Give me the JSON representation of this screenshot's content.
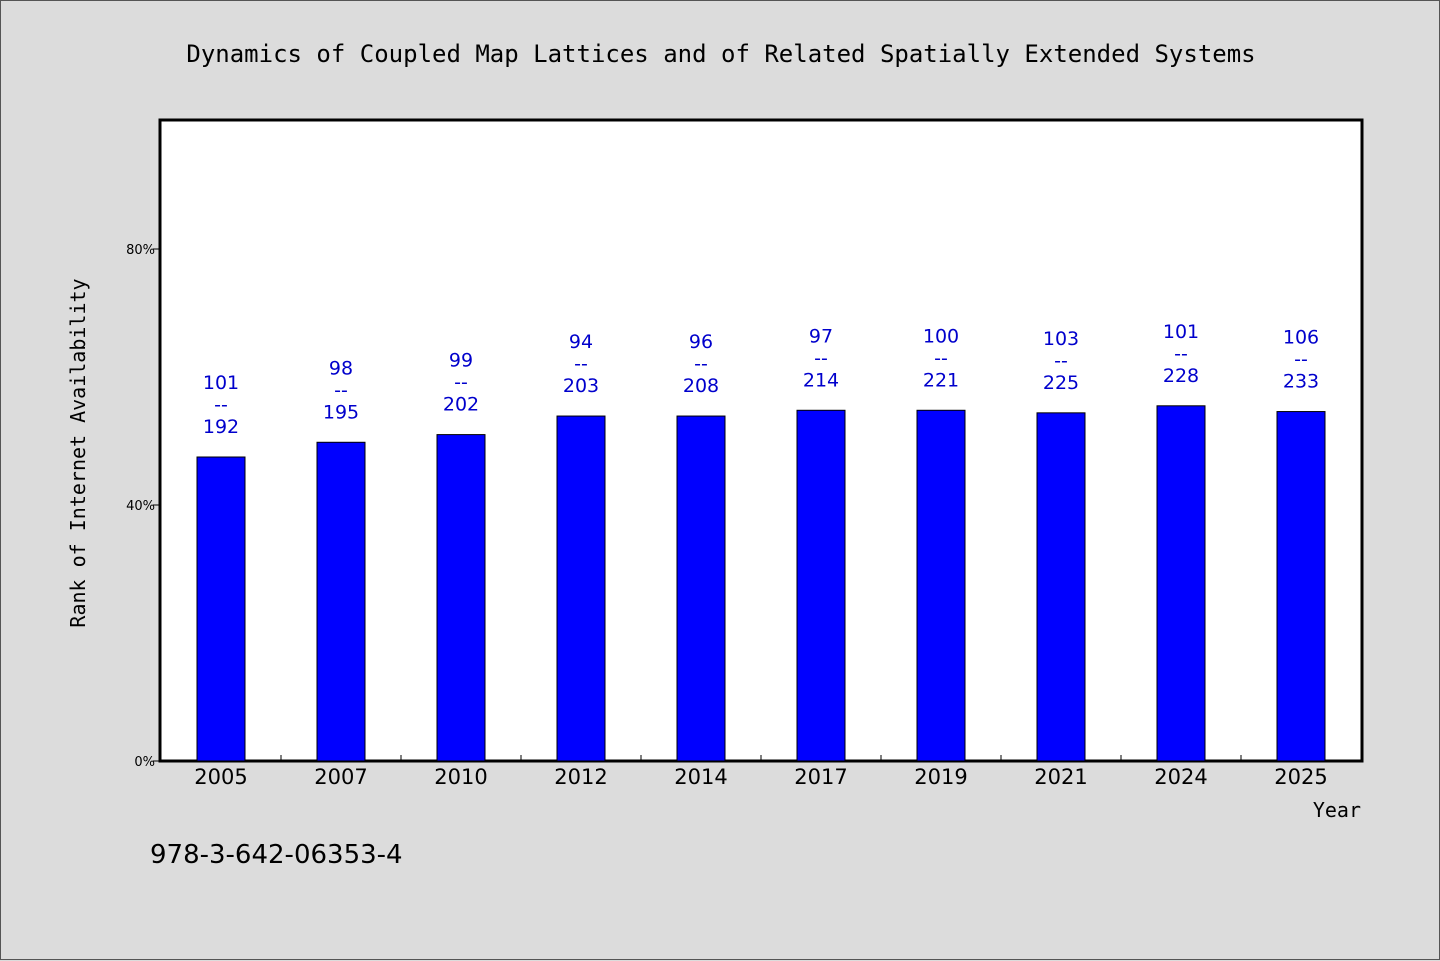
{
  "chart_data": {
    "type": "bar",
    "title": "Dynamics of Coupled Map Lattices and of Related Spatially Extended Systems",
    "xlabel": "Year",
    "ylabel": "Rank of Internet Availability",
    "categories": [
      "2005",
      "2007",
      "2010",
      "2012",
      "2014",
      "2017",
      "2019",
      "2021",
      "2024",
      "2025"
    ],
    "series": [
      {
        "values": [
          47.5,
          49.8,
          51.0,
          53.9,
          53.9,
          54.8,
          54.8,
          54.4,
          55.5,
          54.6
        ]
      }
    ],
    "data_labels": [
      {
        "top": "101",
        "sep": "--",
        "bottom": "192"
      },
      {
        "top": "98",
        "sep": "--",
        "bottom": "195"
      },
      {
        "top": "99",
        "sep": "--",
        "bottom": "202"
      },
      {
        "top": "94",
        "sep": "--",
        "bottom": "203"
      },
      {
        "top": "96",
        "sep": "--",
        "bottom": "208"
      },
      {
        "top": "97",
        "sep": "--",
        "bottom": "214"
      },
      {
        "top": "100",
        "sep": "--",
        "bottom": "221"
      },
      {
        "top": "103",
        "sep": "--",
        "bottom": "225"
      },
      {
        "top": "101",
        "sep": "--",
        "bottom": "228"
      },
      {
        "top": "106",
        "sep": "--",
        "bottom": "233"
      }
    ],
    "ylim": [
      0,
      100
    ],
    "yticks": [
      0,
      40,
      80
    ],
    "ytick_labels": [
      "0%",
      "40%",
      "80%"
    ],
    "grid": false,
    "legend": "none",
    "bar_color": "#0000ff",
    "label_color": "#0000cc",
    "background": "#dcdcdc",
    "plot_background": "#ffffff"
  },
  "footer": {
    "isbn": "978-3-642-06353-4"
  }
}
